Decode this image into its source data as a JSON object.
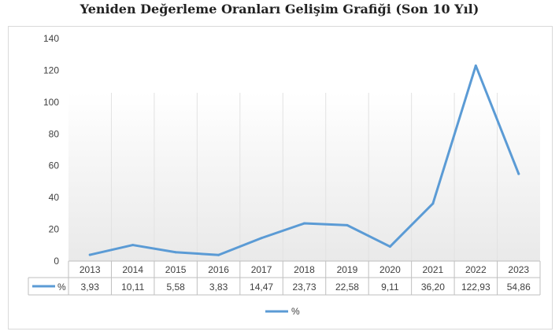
{
  "chart_data": {
    "type": "line",
    "title": "Yeniden Değerleme Oranları Gelişim Grafiği (Son 10 Yıl)",
    "categories": [
      "2013",
      "2014",
      "2015",
      "2016",
      "2017",
      "2018",
      "2019",
      "2020",
      "2021",
      "2022",
      "2023"
    ],
    "series": [
      {
        "name": "%",
        "values": [
          3.93,
          10.11,
          5.58,
          3.83,
          14.47,
          23.73,
          22.58,
          9.11,
          36.2,
          122.93,
          54.86
        ],
        "value_labels": [
          "3,93",
          "10,11",
          "5,58",
          "3,83",
          "14,47",
          "23,73",
          "22,58",
          "9,11",
          "36,20",
          "122,93",
          "54,86"
        ],
        "color": "#5b9bd5"
      }
    ],
    "ylim": [
      0,
      140
    ],
    "yticks": [
      "0",
      "20",
      "40",
      "60",
      "80",
      "100",
      "120",
      "140"
    ],
    "legend": "bottom",
    "data_table": true,
    "grid": false
  }
}
